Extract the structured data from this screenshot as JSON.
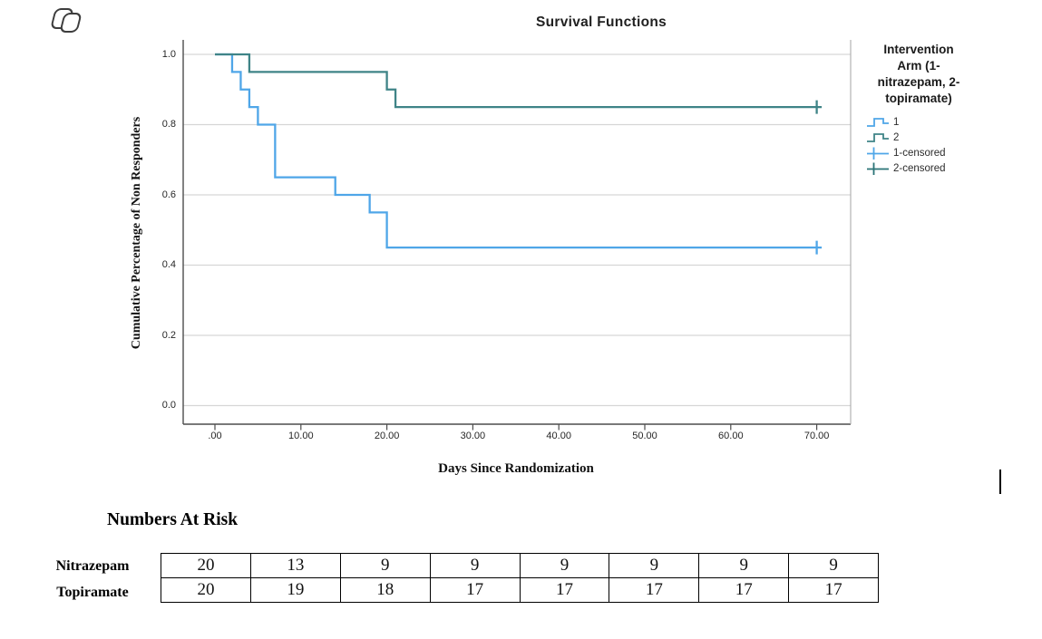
{
  "logo": {
    "icon": "overlapping-rounded-squares"
  },
  "chart_data": {
    "type": "line",
    "subtype": "kaplan-meier-step",
    "title": "Survival Functions",
    "xlabel": "Days Since Randomization",
    "ylabel": "Cumulative Percentage of Non Responders",
    "xlim": [
      -3.7,
      74
    ],
    "ylim": [
      0.0,
      1.05
    ],
    "grid": "horizontal",
    "xticks": [
      0,
      10,
      20,
      30,
      40,
      50,
      60,
      70
    ],
    "xtick_labels": [
      ".00",
      "10.00",
      "20.00",
      "30.00",
      "40.00",
      "50.00",
      "60.00",
      "70.00"
    ],
    "yticks": [
      1.0,
      0.8,
      0.6,
      0.4,
      0.2,
      0.0
    ],
    "ytick_labels": [
      "1.0",
      "0.8",
      "0.6",
      "0.4",
      "0.2",
      "0.0"
    ],
    "legend_position": "right",
    "legend_title": "Intervention Arm (1-nitrazepam, 2-topiramate)",
    "series": [
      {
        "name": "1 (nitrazepam)",
        "color": "#4FA6E8",
        "points": [
          [
            0,
            1.0
          ],
          [
            2,
            0.95
          ],
          [
            3,
            0.9
          ],
          [
            4,
            0.85
          ],
          [
            5,
            0.8
          ],
          [
            7,
            0.65
          ],
          [
            14,
            0.6
          ],
          [
            18,
            0.55
          ],
          [
            20,
            0.45
          ],
          [
            70,
            0.45
          ]
        ],
        "censored": [
          [
            70,
            0.45
          ]
        ]
      },
      {
        "name": "2 (topiramate)",
        "color": "#3F8487",
        "points": [
          [
            0,
            1.0
          ],
          [
            4,
            0.95
          ],
          [
            20,
            0.9
          ],
          [
            21,
            0.85
          ],
          [
            70,
            0.85
          ]
        ],
        "censored": [
          [
            70,
            0.85
          ]
        ]
      }
    ]
  },
  "legend": {
    "title_lines": [
      "Intervention",
      "Arm (1-",
      "nitrazepam, 2-",
      "topiramate)"
    ],
    "entries": [
      {
        "label": "1",
        "symbol": "step",
        "color": "#4FA6E8"
      },
      {
        "label": "2",
        "symbol": "step",
        "color": "#3F8487"
      },
      {
        "label": "1-censored",
        "symbol": "plus",
        "color": "#4FA6E8"
      },
      {
        "label": "2-censored",
        "symbol": "plus",
        "color": "#2A7376"
      }
    ]
  },
  "risk_table": {
    "heading": "Numbers At Risk",
    "rows": [
      {
        "label": "Nitrazepam",
        "values": [
          "20",
          "13",
          "9",
          "9",
          "9",
          "9",
          "9",
          "9"
        ]
      },
      {
        "label": "Topiramate",
        "values": [
          "20",
          "19",
          "18",
          "17",
          "17",
          "17",
          "17",
          "17"
        ]
      }
    ]
  },
  "colors": {
    "arm1": "#4FA6E8",
    "arm2": "#3F8487",
    "grid": "#D6D6D6",
    "frame": "#4D4D4D",
    "frame_right": "#ABABAB"
  }
}
